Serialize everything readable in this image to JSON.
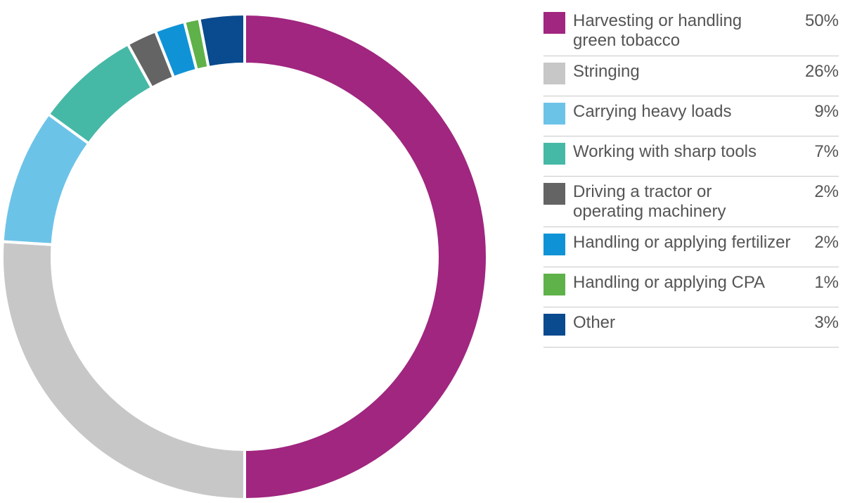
{
  "chart_data": {
    "type": "pie",
    "subtype": "donut",
    "title": "",
    "categories": [
      "Harvesting or handling green tobacco",
      "Stringing",
      "Carrying heavy loads",
      "Working with sharp tools",
      "Driving a tractor or operating machinery",
      "Handling or applying fertilizer",
      "Handling or applying CPA",
      "Other"
    ],
    "values": [
      50,
      26,
      9,
      7,
      2,
      2,
      1,
      3
    ],
    "colors": [
      "#a0267f",
      "#c8c7c8",
      "#6cc3e8",
      "#46b8a6",
      "#646464",
      "#0f93d6",
      "#5fb14a",
      "#0a4a8e"
    ],
    "legend_position": "right"
  },
  "legend": [
    {
      "label_lines": [
        "Harvesting or handling",
        "green tobacco"
      ],
      "pct": "50%",
      "color": "#a0267f"
    },
    {
      "label_lines": [
        "Stringing"
      ],
      "pct": "26%",
      "color": "#c8c7c8"
    },
    {
      "label_lines": [
        "Carrying heavy loads"
      ],
      "pct": "9%",
      "color": "#6cc3e8"
    },
    {
      "label_lines": [
        "Working with sharp tools"
      ],
      "pct": "7%",
      "color": "#46b8a6"
    },
    {
      "label_lines": [
        "Driving a tractor or",
        "operating machinery"
      ],
      "pct": "2%",
      "color": "#646464"
    },
    {
      "label_lines": [
        "Handling or applying fertilizer"
      ],
      "pct": "2%",
      "color": "#0f93d6"
    },
    {
      "label_lines": [
        "Handling or applying CPA"
      ],
      "pct": "1%",
      "color": "#5fb14a"
    },
    {
      "label_lines": [
        "Other"
      ],
      "pct": "3%",
      "color": "#0a4a8e"
    }
  ]
}
